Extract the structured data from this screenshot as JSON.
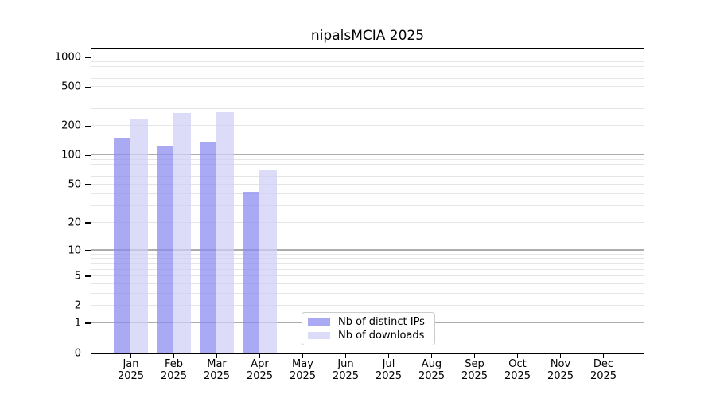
{
  "chart_data": {
    "type": "bar",
    "title": "nipalsMCIA 2025",
    "scale": "log1p",
    "ylim": [
      0,
      1000
    ],
    "grid": "horizontal",
    "legend_position": "bottom-center-inside",
    "categories": [
      {
        "month": "Jan",
        "year": "2025"
      },
      {
        "month": "Feb",
        "year": "2025"
      },
      {
        "month": "Mar",
        "year": "2025"
      },
      {
        "month": "Apr",
        "year": "2025"
      },
      {
        "month": "May",
        "year": "2025"
      },
      {
        "month": "Jun",
        "year": "2025"
      },
      {
        "month": "Jul",
        "year": "2025"
      },
      {
        "month": "Aug",
        "year": "2025"
      },
      {
        "month": "Sep",
        "year": "2025"
      },
      {
        "month": "Oct",
        "year": "2025"
      },
      {
        "month": "Nov",
        "year": "2025"
      },
      {
        "month": "Dec",
        "year": "2025"
      }
    ],
    "series": [
      {
        "name": "Nb of distinct IPs",
        "color": "#aaaaf4",
        "fill_rgba": "rgba(139,139,240,0.73)",
        "values": [
          155,
          124,
          140,
          43,
          null,
          null,
          null,
          null,
          null,
          null,
          null,
          null
        ]
      },
      {
        "name": "Nb of downloads",
        "color": "#dcdcf8",
        "fill_rgba": "rgba(207,207,245,0.73)",
        "values": [
          235,
          273,
          278,
          71,
          null,
          null,
          null,
          null,
          null,
          null,
          null,
          null
        ]
      }
    ],
    "y_axis": {
      "tick_values": [
        0,
        1,
        2,
        5,
        10,
        20,
        50,
        100,
        200,
        500,
        1000
      ],
      "tick_labels": [
        "0",
        "1",
        "2",
        "5",
        "10",
        "20",
        "50",
        "100",
        "200",
        "500",
        "1000"
      ],
      "major_grid_values": [
        1,
        10,
        100,
        1000
      ],
      "minor_grid_values": [
        2,
        3,
        4,
        5,
        6,
        7,
        8,
        9,
        20,
        30,
        40,
        50,
        60,
        70,
        80,
        90,
        200,
        300,
        400,
        500,
        600,
        700,
        800,
        900
      ],
      "major_grid_color": "rgba(0,0,0,0.32)",
      "minor_grid_color": "rgba(0,0,0,0.10)"
    },
    "axis_color": "#000000",
    "text_color": "#000000"
  }
}
